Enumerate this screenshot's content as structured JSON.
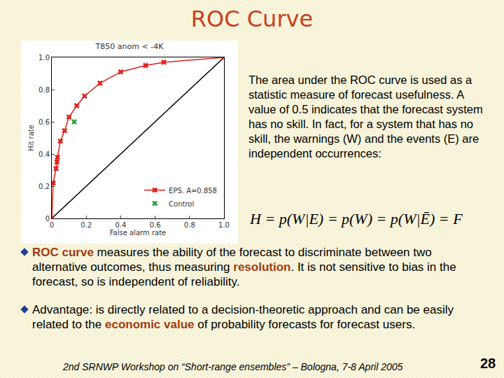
{
  "slide": {
    "title": "ROC Curve",
    "paragraph": "The area under the ROC curve is used as a statistic measure of forecast usefulness. A value of 0.5 indicates that the forecast system has no skill. In fact, for a system that has no skill, the warnings (W) and the events (E) are independent occurrences:",
    "formula": "H = p(W|E) = p(W) = p(W|Ē) = F",
    "bullets": [
      [
        {
          "text": "ROC curve",
          "em": true
        },
        {
          "text": " measures the ability of the forecast to discriminate between two alternative outcomes, thus measuring "
        },
        {
          "text": "resolution",
          "em": true
        },
        {
          "text": ". It is not sensitive to bias in the forecast, so is independent of reliability."
        }
      ],
      [
        {
          "text": "Advantage: is directly related to a decision-theoretic approach and can be easily related to the "
        },
        {
          "text": "economic value",
          "em": true
        },
        {
          "text": " of probability forecasts for forecast users."
        }
      ]
    ],
    "footer": "2nd SRNWP Workshop on “Short-range ensembles” – Bologna, 7-8 April 2005",
    "page": "28"
  },
  "chart_data": {
    "type": "line",
    "title": "T850 anom < -4K",
    "x_label": "False alarm rate",
    "y_label": "Hit rate",
    "xlim": [
      0,
      1
    ],
    "ylim": [
      0,
      1
    ],
    "xticks": [
      0,
      0.2,
      0.4,
      0.6,
      0.8,
      {
        "value": 1,
        "label": "1.0"
      }
    ],
    "yticks": [
      0,
      0.2,
      0.4,
      0.6,
      0.8,
      {
        "value": 1,
        "label": "1.0"
      }
    ],
    "grid": false,
    "legend": "bottom right",
    "series": [
      {
        "name": "EPS. A=0.858",
        "color": "#e0201b",
        "marker": "x",
        "line_style": "solid",
        "x": [
          0,
          0.008,
          0.025,
          0.03,
          0.033,
          0.05,
          0.074,
          0.1,
          0.145,
          0.19,
          0.28,
          0.4,
          0.545,
          0.65,
          1
        ],
        "values": [
          0,
          0.22,
          0.31,
          0.35,
          0.38,
          0.48,
          0.545,
          0.63,
          0.7,
          0.76,
          0.84,
          0.91,
          0.95,
          0.97,
          1
        ]
      },
      {
        "name": "Control",
        "color": "#2e9e3e",
        "marker": "x",
        "type": "scatter",
        "x": [
          0.13
        ],
        "values": [
          0.6
        ]
      },
      {
        "color": "#000000",
        "marker": "none",
        "line_style": "solid",
        "x": [
          0,
          1
        ],
        "values": [
          0,
          1
        ]
      }
    ]
  }
}
